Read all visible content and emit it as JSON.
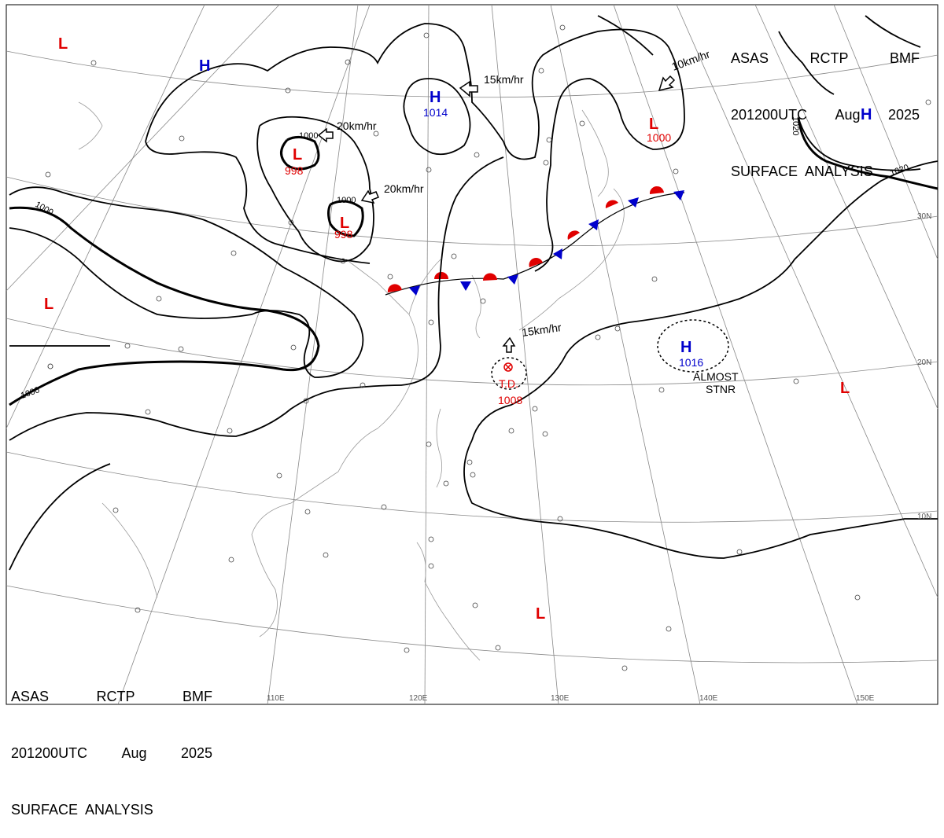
{
  "header": {
    "line1_center": "ASAS",
    "line1_agency": "RCTP",
    "line1_office": "BMF",
    "line2_time": "201200UTC",
    "line2_month": "Aug",
    "line2_year": "2025",
    "line3": "SURFACE  ANALYSIS"
  },
  "longitude_labels": [
    "110E",
    "120E",
    "130E",
    "140E",
    "150E"
  ],
  "latitude_labels": [
    "30N",
    "20N",
    "10N"
  ],
  "pressure_centers": [
    {
      "type": "L",
      "value": "998",
      "color": "#e00000"
    },
    {
      "type": "L",
      "value": "998",
      "color": "#e00000"
    },
    {
      "type": "L",
      "value": "1000",
      "color": "#e00000"
    },
    {
      "type": "H",
      "value": "1014",
      "color": "#0000cc"
    },
    {
      "type": "H",
      "value": "1016",
      "color": "#0000cc"
    },
    {
      "type": "H",
      "value": "",
      "color": "#0000cc"
    },
    {
      "type": "H",
      "value": "",
      "color": "#0000cc"
    },
    {
      "type": "L",
      "value": "",
      "color": "#e00000"
    },
    {
      "type": "L",
      "value": "",
      "color": "#e00000"
    },
    {
      "type": "L",
      "value": "",
      "color": "#e00000"
    },
    {
      "type": "L",
      "value": "",
      "color": "#e00000"
    }
  ],
  "isobar_labels": [
    "1000",
    "1000",
    "1000",
    "1000",
    "1020",
    "1020"
  ],
  "motion_vectors": [
    "20km/hr",
    "20km/hr",
    "15km/hr",
    "10km/hr",
    "15km/hr"
  ],
  "tropical_depression": {
    "label": "T.D.",
    "pressure": "1008"
  },
  "notes": {
    "almost": "ALMOST",
    "stnr": "STNR"
  },
  "colors": {
    "low": "#e00000",
    "high": "#0000cc",
    "warm_front": "#e00000",
    "cold_front": "#0000cc"
  }
}
